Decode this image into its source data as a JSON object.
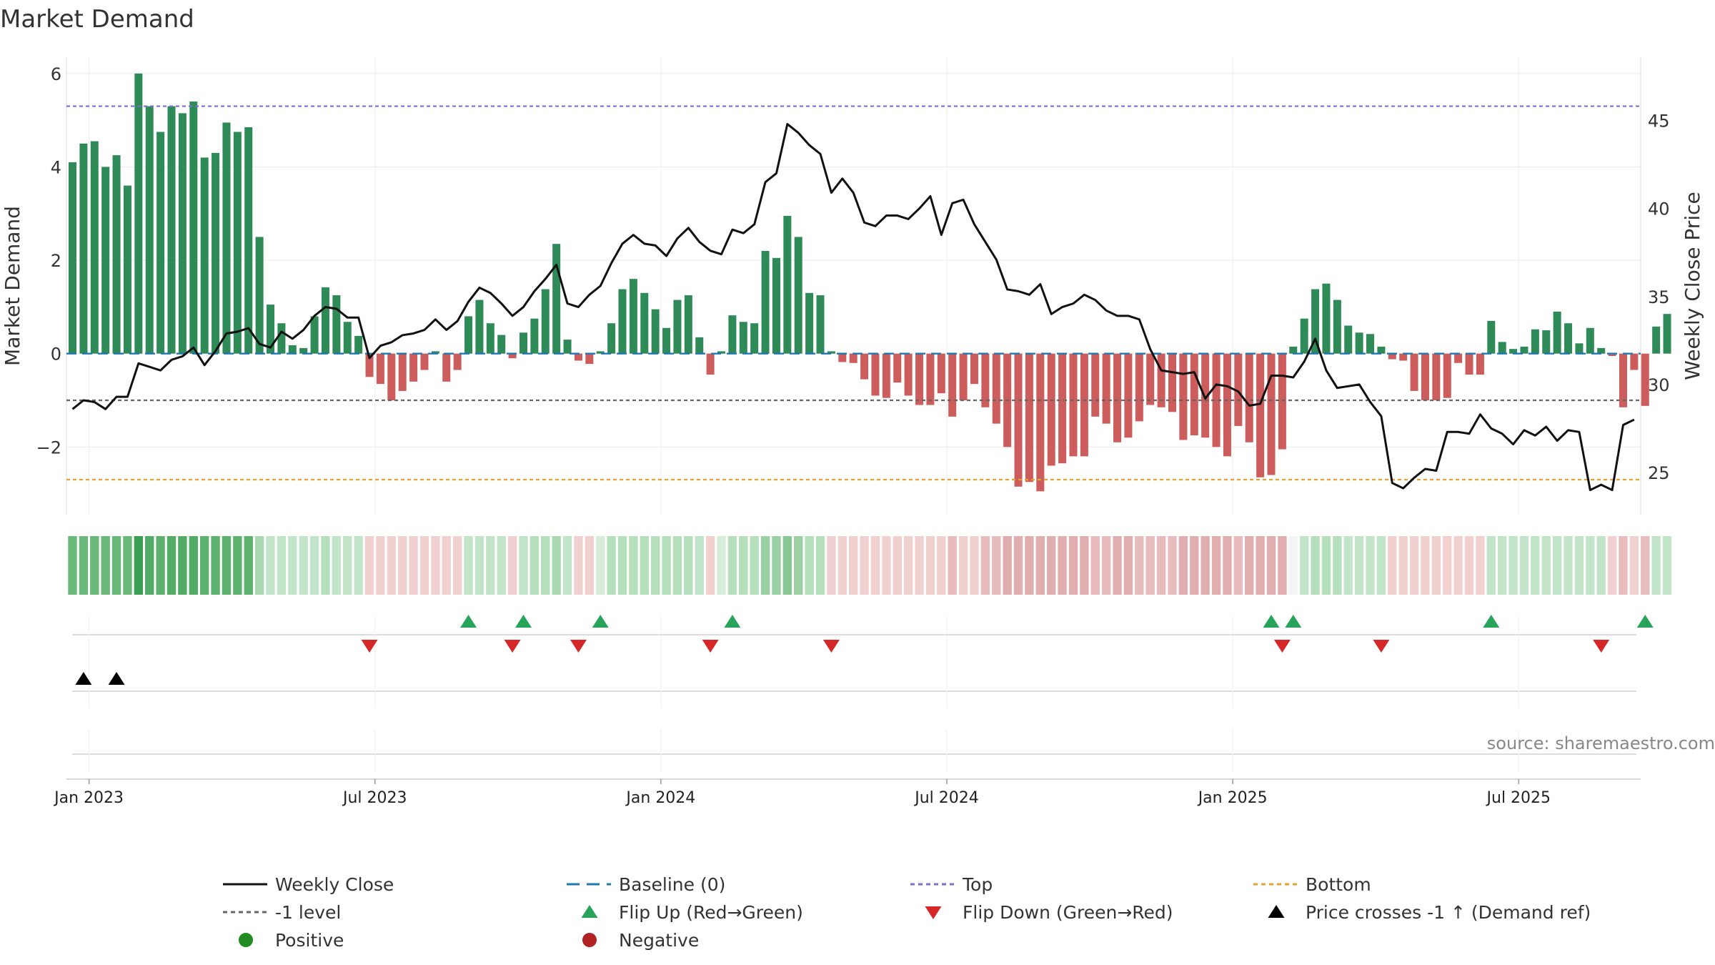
{
  "chart_data": {
    "type": "bar",
    "title": "Market Demand",
    "ylabel": "Market Demand",
    "y2label": "Weekly Close Price",
    "ylim": [
      -3.45,
      6.35
    ],
    "y2lim": [
      22.6,
      48.6
    ],
    "y_ticks": [
      6,
      4,
      2,
      0,
      -2
    ],
    "y_tick_labels": [
      "6",
      "4",
      "2",
      "0",
      "−2"
    ],
    "y2_ticks": [
      45,
      40,
      35,
      30,
      25
    ],
    "y2_tick_labels": [
      "45",
      "40",
      "35",
      "30",
      "25"
    ],
    "x_tick_labels": [
      "Jan 2023",
      "Jul 2023",
      "Jan 2024",
      "Jul 2024",
      "Jan 2025",
      "Jul 2025"
    ],
    "x_tick_weeks": [
      1.5,
      27.5,
      53.5,
      79.5,
      105.5,
      131.5
    ],
    "reference_lines": {
      "top": 5.3,
      "minus_one": -1,
      "bottom": -2.7,
      "baseline": 0
    },
    "demand": [
      4.1,
      4.5,
      4.55,
      4,
      4.25,
      3.6,
      6,
      5.3,
      4.75,
      5.3,
      5.15,
      5.4,
      4.2,
      4.3,
      4.95,
      4.75,
      4.85,
      2.5,
      1.05,
      0.65,
      0.18,
      0.12,
      0.8,
      1.42,
      1.25,
      0.68,
      0.38,
      -0.5,
      -0.65,
      -1.0,
      -0.8,
      -0.6,
      -0.35,
      0.05,
      -0.6,
      -0.35,
      0.8,
      1.15,
      0.65,
      0.4,
      -0.1,
      0.45,
      0.75,
      1.38,
      2.35,
      0.3,
      -0.15,
      -0.22,
      0.05,
      0.65,
      1.38,
      1.6,
      1.3,
      0.95,
      0.55,
      1.15,
      1.25,
      0.35,
      -0.45,
      0.05,
      0.82,
      0.68,
      0.65,
      2.2,
      2.05,
      2.95,
      2.5,
      1.3,
      1.25,
      0.05,
      -0.18,
      -0.2,
      -0.55,
      -0.9,
      -0.95,
      -0.62,
      -0.9,
      -1.1,
      -1.1,
      -0.85,
      -1.35,
      -1.0,
      -0.65,
      -1.15,
      -1.5,
      -2.0,
      -2.85,
      -2.75,
      -2.95,
      -2.4,
      -2.35,
      -2.2,
      -2.2,
      -1.35,
      -1.5,
      -1.9,
      -1.8,
      -1.45,
      -1.1,
      -1.15,
      -1.25,
      -1.85,
      -1.75,
      -1.8,
      -2.0,
      -2.2,
      -1.55,
      -1.9,
      -2.65,
      -2.6,
      -2.05,
      0.15,
      0.75,
      1.38,
      1.5,
      1.15,
      0.6,
      0.45,
      0.42,
      0.15,
      -0.12,
      -0.15,
      -0.8,
      -1.0,
      -1.0,
      -0.95,
      -0.2,
      -0.45,
      -0.45,
      0.7,
      0.25,
      0.1,
      0.15,
      0.52,
      0.5,
      0.9,
      0.65,
      0.22,
      0.55,
      0.12,
      -0.05,
      -1.15,
      -0.35,
      -1.12,
      0.58,
      0.85
    ],
    "price": [
      28.6,
      29.1,
      29,
      28.6,
      29.3,
      29.3,
      31.2,
      31,
      30.8,
      31.4,
      31.6,
      32.1,
      31.1,
      31.9,
      32.9,
      33,
      33.2,
      32.3,
      32.1,
      33,
      32.6,
      33.1,
      33.9,
      34.4,
      34.3,
      33.8,
      33.8,
      31.5,
      32.2,
      32.4,
      32.8,
      32.9,
      33.1,
      33.7,
      33.1,
      33.6,
      34.7,
      35.5,
      35.2,
      34.6,
      33.9,
      34.4,
      35.3,
      36,
      36.8,
      34.6,
      34.4,
      35.1,
      35.6,
      36.9,
      38,
      38.5,
      38,
      37.9,
      37.3,
      38.3,
      38.9,
      38.1,
      37.6,
      37.4,
      38.8,
      38.6,
      39.1,
      41.5,
      42,
      44.8,
      44.3,
      43.6,
      43.1,
      40.9,
      41.7,
      40.9,
      39.2,
      39,
      39.6,
      39.6,
      39.4,
      40,
      40.7,
      38.5,
      40.3,
      40.5,
      39.1,
      38.1,
      37.1,
      35.4,
      35.3,
      35.1,
      35.7,
      34,
      34.4,
      34.6,
      35.1,
      34.8,
      34.2,
      33.9,
      33.9,
      33.7,
      32,
      30.8,
      30.7,
      30.6,
      30.7,
      29.2,
      30,
      29.9,
      29.6,
      28.8,
      28.9,
      30.5,
      30.5,
      30.4,
      31.3,
      32.6,
      30.8,
      29.8,
      29.9,
      30,
      29,
      28.2,
      24.4,
      24.1,
      24.7,
      25.2,
      25.1,
      27.3,
      27.3,
      27.2,
      28.3,
      27.5,
      27.2,
      26.6,
      27.4,
      27.1,
      27.6,
      26.8,
      27.4,
      27.3,
      24,
      24.3,
      24,
      27.7,
      28
    ],
    "strip_colors": [
      "#6ab87a",
      "#6ab87a",
      "#6ab87a",
      "#6ab87a",
      "#6ab87a",
      "#6ab87a",
      "#3a9f52",
      "#52ab66",
      "#5eb270",
      "#52ab66",
      "#52ab66",
      "#52ab66",
      "#5eb270",
      "#5eb270",
      "#5eb270",
      "#5eb270",
      "#5eb270",
      "#a9d8b1",
      "#c2e4c8",
      "#c2e4c8",
      "#c2e4c8",
      "#c2e4c8",
      "#c2e4c8",
      "#b6dfbc",
      "#c2e4c8",
      "#c2e4c8",
      "#c2e4c8",
      "#f1d0d0",
      "#f1d0d0",
      "#f1d0d0",
      "#f1d0d0",
      "#f1d0d0",
      "#f1d0d0",
      "#f1d0d0",
      "#f1d0d0",
      "#f1d0d0",
      "#c2e4c8",
      "#c2e4c8",
      "#c2e4c8",
      "#c2e4c8",
      "#f1d0d0",
      "#c2e4c8",
      "#b6dfbc",
      "#b6dfbc",
      "#a9d8b1",
      "#c2e4c8",
      "#f1d0d0",
      "#f1d0d0",
      "#d6edd9",
      "#b6dfbc",
      "#b6dfbc",
      "#b6dfbc",
      "#b6dfbc",
      "#b6dfbc",
      "#b6dfbc",
      "#b6dfbc",
      "#b6dfbc",
      "#c2e4c8",
      "#f1d0d0",
      "#d6edd9",
      "#b6dfbc",
      "#b6dfbc",
      "#b6dfbc",
      "#9bd0a4",
      "#9bd0a4",
      "#89c893",
      "#9bd0a4",
      "#b6dfbc",
      "#b6dfbc",
      "#f1d0d0",
      "#f1d0d0",
      "#f1d0d0",
      "#f1d0d0",
      "#f1d0d0",
      "#f1d0d0",
      "#f1d0d0",
      "#f1d0d0",
      "#f1d0d0",
      "#f1d0d0",
      "#f1d0d0",
      "#e8bcbc",
      "#f1d0d0",
      "#f1d0d0",
      "#e8bcbc",
      "#e8bcbc",
      "#e0aeae",
      "#e0aeae",
      "#e0aeae",
      "#e0aeae",
      "#e0aeae",
      "#e0aeae",
      "#e0aeae",
      "#e0aeae",
      "#e8bcbc",
      "#e8bcbc",
      "#e0aeae",
      "#e0aeae",
      "#e8bcbc",
      "#e8bcbc",
      "#e8bcbc",
      "#e8bcbc",
      "#e0aeae",
      "#e0aeae",
      "#e0aeae",
      "#e0aeae",
      "#e0aeae",
      "#e8bcbc",
      "#e0aeae",
      "#e0aeae",
      "#e0aeae",
      "#e0aeae",
      "#f4f4f4",
      "#c2e4c8",
      "#b6dfbc",
      "#b6dfbc",
      "#b6dfbc",
      "#c2e4c8",
      "#c2e4c8",
      "#c2e4c8",
      "#c2e4c8",
      "#f1d0d0",
      "#f1d0d0",
      "#f1d0d0",
      "#f1d0d0",
      "#f1d0d0",
      "#f1d0d0",
      "#f1d0d0",
      "#f1d0d0",
      "#f1d0d0",
      "#c2e4c8",
      "#c2e4c8",
      "#c2e4c8",
      "#c2e4c8",
      "#c2e4c8",
      "#c2e4c8",
      "#c2e4c8",
      "#c2e4c8",
      "#c2e4c8",
      "#c2e4c8",
      "#c2e4c8",
      "#f1d0d0",
      "#e8bcbc",
      "#f1d0d0",
      "#e8bcbc",
      "#c2e4c8",
      "#c2e4c8"
    ],
    "flip_up_weeks": [
      36,
      41,
      48,
      60,
      109,
      111,
      129,
      143
    ],
    "flip_down_weeks": [
      27,
      40,
      46,
      58,
      69,
      110,
      119,
      139
    ],
    "price_cross_weeks": [
      1,
      4
    ],
    "source_label": "source: sharemaestro.com",
    "legend": [
      {
        "key": "weekly_close",
        "label": "Weekly Close"
      },
      {
        "key": "baseline",
        "label": "Baseline (0)"
      },
      {
        "key": "top",
        "label": "Top"
      },
      {
        "key": "bottom",
        "label": "Bottom"
      },
      {
        "key": "minus_one",
        "label": "-1 level"
      },
      {
        "key": "flip_up",
        "label": "Flip Up (Red→Green)"
      },
      {
        "key": "flip_down",
        "label": "Flip Down (Green→Red)"
      },
      {
        "key": "price_cross",
        "label": "Price crosses -1 ↑ (Demand ref)"
      },
      {
        "key": "positive",
        "label": "Positive"
      },
      {
        "key": "negative",
        "label": "Negative"
      }
    ],
    "colors": {
      "positive_bar": "#2e8b57",
      "negative_bar": "#cd5c5c",
      "price_line": "#111111",
      "baseline": "#1f77b4",
      "top": "#7a6fcf",
      "bottom": "#e8a030",
      "minus_one": "#666666",
      "flip_up": "#27a35a",
      "flip_down": "#d62728",
      "price_cross": "#000000",
      "positive_dot": "#228b22",
      "negative_dot": "#b22222"
    }
  }
}
